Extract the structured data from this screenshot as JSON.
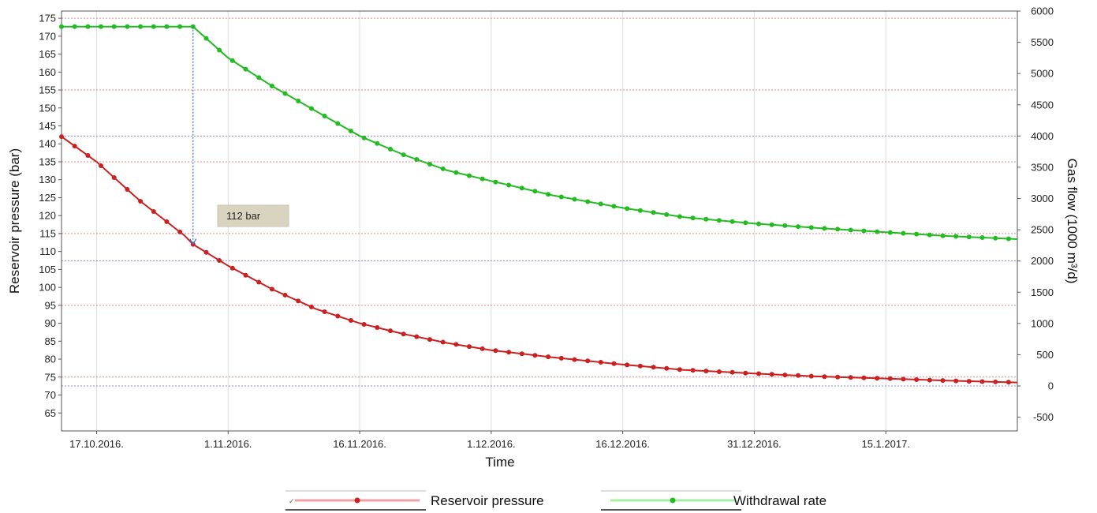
{
  "chart_data": {
    "type": "line",
    "xlabel": "Time",
    "ylabel_left": "Reservoir pressure (bar)",
    "ylabel_right": "Gas flow (1000 m³/d)",
    "x_range": [
      "2016-10-13",
      "2017-01-30"
    ],
    "x_ticks": [
      {
        "date": "2016-10-17",
        "label": "17.10.2016."
      },
      {
        "date": "2016-11-01",
        "label": "1.11.2016."
      },
      {
        "date": "2016-11-16",
        "label": "16.11.2016."
      },
      {
        "date": "2016-12-01",
        "label": "1.12.2016."
      },
      {
        "date": "2016-12-16",
        "label": "16.12.2016."
      },
      {
        "date": "2016-12-31",
        "label": "31.12.2016."
      },
      {
        "date": "2017-01-15",
        "label": "15.1.2017."
      }
    ],
    "y_left": {
      "range": [
        60,
        177
      ],
      "ticks": [
        65,
        70,
        75,
        80,
        85,
        90,
        95,
        100,
        105,
        110,
        115,
        120,
        125,
        130,
        135,
        140,
        145,
        150,
        155,
        160,
        165,
        170,
        175
      ]
    },
    "y_right": {
      "range": [
        -720,
        6000
      ],
      "ticks": [
        -500,
        0,
        500,
        1000,
        1500,
        2000,
        2500,
        3000,
        3500,
        4000,
        4500,
        5000,
        5500,
        6000
      ]
    },
    "grid": {
      "left_axis_lines": [
        75,
        95,
        115,
        135,
        155,
        175
      ],
      "right_axis_lines": [
        0,
        2000,
        4000,
        6000
      ],
      "vertical_at_ticks": true
    },
    "legend_position": "bottom",
    "series": [
      {
        "name": "Reservoir pressure",
        "axis": "left",
        "color": "#cc1f1f",
        "line_color": "#f0a0a0",
        "points": [
          {
            "date": "2016-10-13",
            "value": 142
          },
          {
            "date": "2016-10-17",
            "value": 135
          },
          {
            "date": "2016-10-22",
            "value": 124
          },
          {
            "date": "2016-10-27",
            "value": 114.5
          },
          {
            "date": "2016-10-28",
            "value": 112
          },
          {
            "date": "2016-11-01",
            "value": 106
          },
          {
            "date": "2016-11-06",
            "value": 99.5
          },
          {
            "date": "2016-11-11",
            "value": 94
          },
          {
            "date": "2016-11-16",
            "value": 90
          },
          {
            "date": "2016-11-21",
            "value": 87
          },
          {
            "date": "2016-11-26",
            "value": 84.5
          },
          {
            "date": "2016-12-01",
            "value": 82.5
          },
          {
            "date": "2016-12-08",
            "value": 80.5
          },
          {
            "date": "2016-12-16",
            "value": 78.5
          },
          {
            "date": "2016-12-23",
            "value": 77
          },
          {
            "date": "2016-12-31",
            "value": 76
          },
          {
            "date": "2017-01-07",
            "value": 75.2
          },
          {
            "date": "2017-01-15",
            "value": 74.6
          },
          {
            "date": "2017-01-22",
            "value": 74
          },
          {
            "date": "2017-01-30",
            "value": 73.5
          }
        ]
      },
      {
        "name": "Withdrawal rate",
        "axis": "right",
        "color": "#22bb22",
        "line_color": "#a6eea6",
        "points": [
          {
            "date": "2016-10-13",
            "value": 5750
          },
          {
            "date": "2016-10-20",
            "value": 5750
          },
          {
            "date": "2016-10-28",
            "value": 5750
          },
          {
            "date": "2016-11-01",
            "value": 5250
          },
          {
            "date": "2016-11-06",
            "value": 4800
          },
          {
            "date": "2016-11-11",
            "value": 4400
          },
          {
            "date": "2016-11-16",
            "value": 4000
          },
          {
            "date": "2016-11-21",
            "value": 3700
          },
          {
            "date": "2016-11-26",
            "value": 3450
          },
          {
            "date": "2016-12-01",
            "value": 3280
          },
          {
            "date": "2016-12-08",
            "value": 3050
          },
          {
            "date": "2016-12-16",
            "value": 2850
          },
          {
            "date": "2016-12-23",
            "value": 2700
          },
          {
            "date": "2016-12-31",
            "value": 2600
          },
          {
            "date": "2017-01-07",
            "value": 2530
          },
          {
            "date": "2017-01-15",
            "value": 2460
          },
          {
            "date": "2017-01-22",
            "value": 2400
          },
          {
            "date": "2017-01-30",
            "value": 2350
          }
        ]
      }
    ],
    "annotations": [
      {
        "text": "112 bar",
        "date": "2016-10-28",
        "from_value_right": 5750,
        "to_value_left": 112
      }
    ]
  }
}
